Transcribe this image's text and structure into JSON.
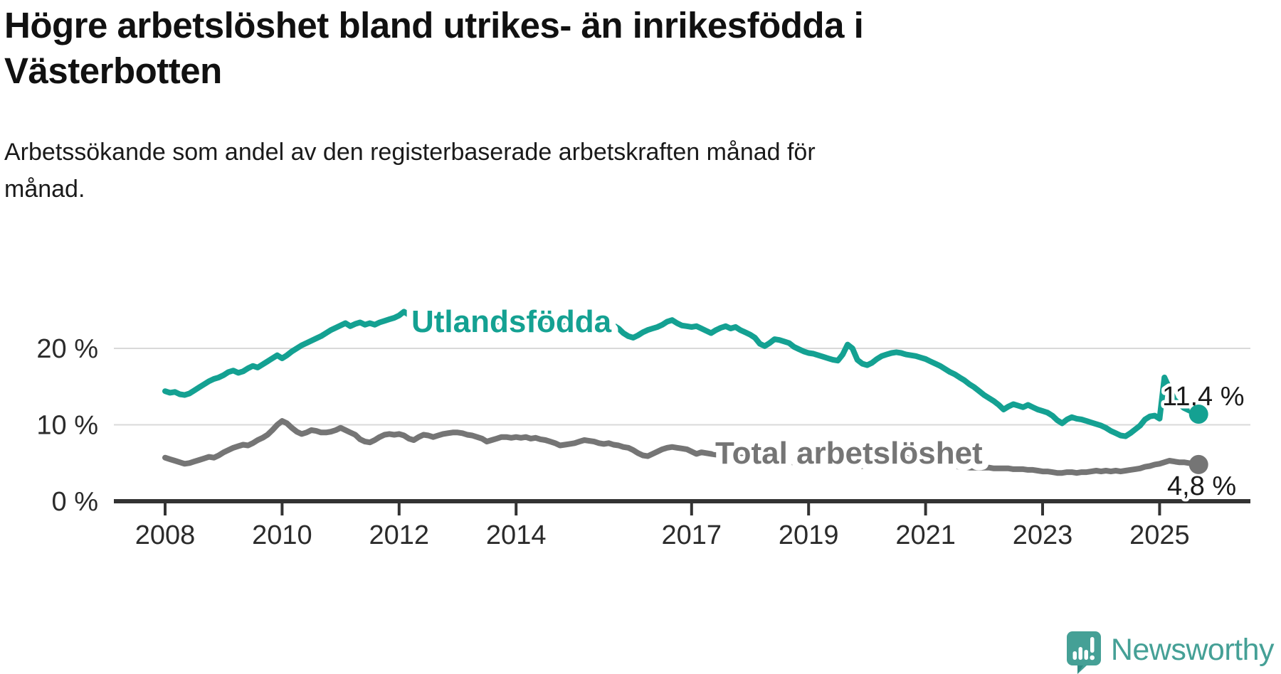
{
  "header": {
    "title_lines": [
      "Högre arbetslöshet bland utrikes- än inrikesfödda i",
      "Västerbotten"
    ],
    "subtitle_lines": [
      "Arbetssökande som andel av den registerbaserade arbetskraften månad för",
      "månad."
    ]
  },
  "chart_data": {
    "type": "line",
    "frequency": "monthly",
    "start": {
      "year": 2008,
      "month": 1
    },
    "end": {
      "year": 2025,
      "month": 9
    },
    "x_axis": {
      "tick_years": [
        2008,
        2010,
        2012,
        2014,
        2017,
        2019,
        2021,
        2023,
        2025
      ]
    },
    "y_axis": {
      "ticks": [
        {
          "value": 0,
          "label": "0 %"
        },
        {
          "value": 10,
          "label": "10 %"
        },
        {
          "value": 20,
          "label": "20 %"
        }
      ],
      "gridline_values": [
        10,
        20
      ],
      "range": [
        0,
        26
      ],
      "unit": "percent"
    },
    "series": [
      {
        "name": "Utlandsfödda",
        "color": "#14a192",
        "end_value": 11.4,
        "end_label": "11,4 %",
        "values": [
          14.4,
          14.2,
          14.3,
          14.0,
          13.9,
          14.1,
          14.5,
          14.9,
          15.3,
          15.7,
          16.0,
          16.2,
          16.5,
          16.9,
          17.1,
          16.8,
          17.0,
          17.4,
          17.7,
          17.5,
          17.9,
          18.3,
          18.7,
          19.1,
          18.7,
          19.1,
          19.6,
          20.0,
          20.4,
          20.7,
          21.0,
          21.3,
          21.6,
          22.0,
          22.4,
          22.7,
          23.0,
          23.3,
          22.9,
          23.2,
          23.4,
          23.1,
          23.3,
          23.1,
          23.4,
          23.6,
          23.8,
          24.0,
          24.3,
          24.8,
          24.4,
          24.1,
          24.3,
          24.0,
          23.8,
          24.0,
          23.9,
          23.7,
          23.9,
          23.6,
          23.8,
          24.0,
          23.7,
          23.5,
          23.7,
          23.4,
          23.6,
          23.3,
          23.5,
          23.2,
          23.4,
          23.1,
          23.3,
          23.5,
          23.2,
          23.4,
          23.1,
          23.3,
          23.0,
          23.2,
          22.9,
          23.1,
          23.3,
          23.5,
          23.7,
          23.9,
          23.6,
          23.8,
          23.5,
          23.7,
          23.6,
          22.8,
          23.0,
          22.6,
          22.0,
          21.6,
          21.4,
          21.7,
          22.1,
          22.4,
          22.6,
          22.8,
          23.1,
          23.5,
          23.7,
          23.3,
          23.0,
          22.9,
          22.8,
          22.9,
          22.6,
          22.3,
          22.0,
          22.4,
          22.7,
          22.9,
          22.6,
          22.8,
          22.4,
          22.1,
          21.8,
          21.4,
          20.6,
          20.3,
          20.7,
          21.2,
          21.1,
          20.9,
          20.7,
          20.2,
          19.9,
          19.6,
          19.4,
          19.3,
          19.1,
          18.9,
          18.7,
          18.5,
          18.4,
          19.2,
          20.5,
          20.0,
          18.5,
          18.0,
          17.8,
          18.1,
          18.6,
          19.0,
          19.2,
          19.4,
          19.5,
          19.4,
          19.2,
          19.1,
          19.0,
          18.8,
          18.6,
          18.3,
          18.0,
          17.7,
          17.3,
          16.9,
          16.6,
          16.2,
          15.8,
          15.3,
          14.9,
          14.4,
          13.9,
          13.5,
          13.1,
          12.6,
          12.0,
          12.4,
          12.7,
          12.5,
          12.3,
          12.6,
          12.3,
          12.0,
          11.8,
          11.6,
          11.2,
          10.6,
          10.2,
          10.7,
          11.0,
          10.8,
          10.7,
          10.5,
          10.3,
          10.1,
          9.9,
          9.6,
          9.2,
          8.9,
          8.6,
          8.5,
          8.9,
          9.4,
          9.9,
          10.7,
          11.1,
          11.2,
          10.8,
          16.2,
          14.8,
          13.3,
          12.7,
          12.2,
          11.9,
          11.6,
          11.4
        ]
      },
      {
        "name": "Total arbetslöshet",
        "color": "#757575",
        "end_value": 4.8,
        "end_label": "4,8 %",
        "values": [
          5.7,
          5.5,
          5.3,
          5.1,
          4.9,
          5.0,
          5.2,
          5.4,
          5.6,
          5.8,
          5.7,
          6.0,
          6.4,
          6.7,
          7.0,
          7.2,
          7.4,
          7.3,
          7.6,
          8.0,
          8.3,
          8.7,
          9.3,
          10.0,
          10.5,
          10.2,
          9.6,
          9.1,
          8.8,
          9.0,
          9.3,
          9.2,
          9.0,
          9.0,
          9.1,
          9.3,
          9.6,
          9.3,
          9.0,
          8.7,
          8.1,
          7.8,
          7.7,
          8.0,
          8.4,
          8.7,
          8.8,
          8.7,
          8.8,
          8.6,
          8.2,
          8.0,
          8.4,
          8.7,
          8.6,
          8.4,
          8.6,
          8.8,
          8.9,
          9.0,
          9.0,
          8.9,
          8.7,
          8.6,
          8.4,
          8.2,
          7.8,
          8.0,
          8.2,
          8.4,
          8.4,
          8.3,
          8.4,
          8.3,
          8.4,
          8.2,
          8.3,
          8.1,
          8.0,
          7.8,
          7.6,
          7.3,
          7.4,
          7.5,
          7.6,
          7.8,
          8.0,
          7.9,
          7.8,
          7.6,
          7.5,
          7.6,
          7.4,
          7.3,
          7.1,
          7.0,
          6.7,
          6.3,
          6.0,
          5.9,
          6.2,
          6.5,
          6.8,
          7.0,
          7.1,
          7.0,
          6.9,
          6.8,
          6.5,
          6.2,
          6.4,
          6.3,
          6.2,
          6.1,
          6.2,
          6.1,
          6.0,
          5.9,
          5.8,
          5.8,
          5.7,
          5.6,
          5.5,
          5.5,
          5.4,
          5.3,
          5.3,
          5.2,
          5.1,
          5.1,
          5.0,
          5.0,
          5.0,
          4.9,
          4.9,
          4.8,
          4.8,
          4.7,
          4.7,
          4.8,
          4.8,
          4.7,
          4.6,
          4.6,
          4.7,
          4.9,
          5.3,
          5.7,
          5.9,
          6.0,
          5.9,
          5.8,
          5.7,
          5.5,
          5.4,
          5.3,
          5.2,
          5.1,
          5.0,
          4.9,
          4.8,
          4.7,
          4.6,
          4.5,
          4.5,
          4.4,
          4.4,
          4.4,
          4.4,
          4.4,
          4.3,
          4.3,
          4.3,
          4.3,
          4.2,
          4.2,
          4.2,
          4.1,
          4.1,
          4.0,
          3.9,
          3.9,
          3.8,
          3.7,
          3.7,
          3.8,
          3.8,
          3.7,
          3.8,
          3.8,
          3.9,
          4.0,
          3.9,
          4.0,
          3.9,
          4.0,
          3.9,
          4.0,
          4.1,
          4.2,
          4.3,
          4.5,
          4.6,
          4.8,
          4.9,
          5.1,
          5.3,
          5.2,
          5.1,
          5.1,
          5.0,
          4.9,
          4.8
        ]
      }
    ]
  },
  "branding": {
    "name": "Newsworthy",
    "logo_icon": "newsworthy-speech-bubble-chart-icon",
    "color": "#45a096"
  }
}
